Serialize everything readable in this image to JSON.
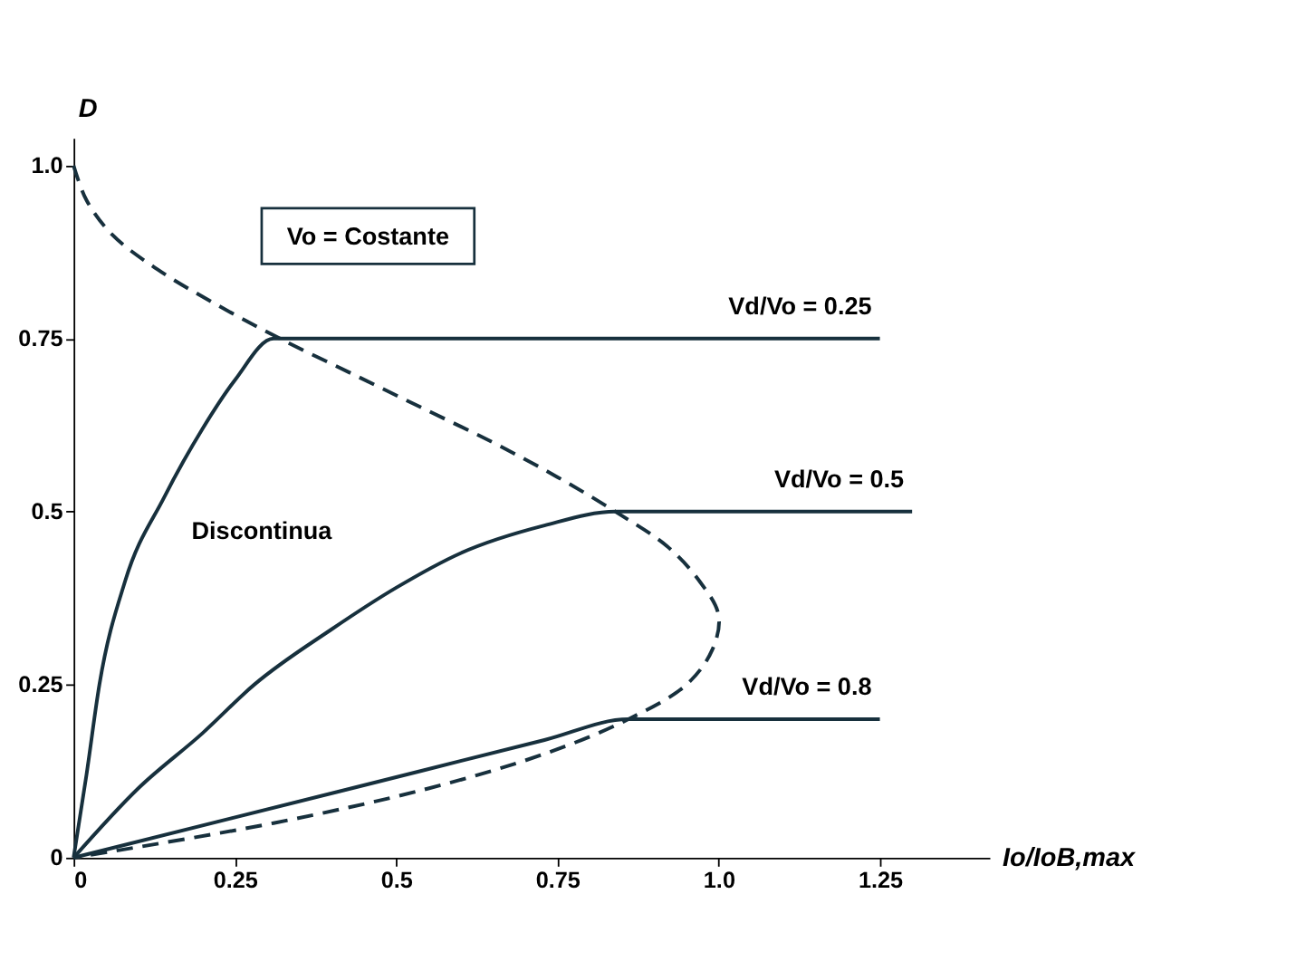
{
  "chart_data": {
    "type": "line",
    "xlabel": "Io/IoB,max",
    "ylabel": "D",
    "annotations": [
      "Vo = Costante",
      "Discontinua"
    ],
    "xlim": [
      0,
      1.42
    ],
    "ylim": [
      0,
      1.04
    ],
    "xticks": [
      0,
      0.25,
      0.5,
      0.75,
      {
        "value": 1,
        "label": "1.0"
      },
      1.25
    ],
    "yticks": [
      0,
      0.25,
      0.5,
      0.75,
      {
        "value": 1,
        "label": "1.0"
      }
    ],
    "grid": false,
    "marker": "none",
    "series": [
      {
        "color": "#17303d",
        "line_style": "dashed",
        "x": [
          0,
          0.02,
          0.06,
          0.13,
          0.22,
          0.32,
          0.43,
          0.54,
          0.65,
          0.75,
          0.84,
          0.92,
          0.97,
          1.0,
          0.99,
          0.95,
          0.86,
          0.73,
          0.55,
          0.31,
          0
        ],
        "values": [
          1,
          0.95,
          0.9,
          0.85,
          0.8,
          0.75,
          0.7,
          0.65,
          0.6,
          0.55,
          0.5,
          0.45,
          0.4,
          0.35,
          0.3,
          0.25,
          0.2,
          0.15,
          0.1,
          0.05,
          0
        ]
      },
      {
        "name": "Vd/Vo = 0.25",
        "color": "#17303d",
        "line_style": "solid",
        "x": [
          0,
          0.02,
          0.04,
          0.08,
          0.14,
          0.2,
          0.25,
          0.31,
          1.25
        ],
        "values": [
          0,
          0.12,
          0.25,
          0.4,
          0.52,
          0.62,
          0.69,
          0.75,
          0.75
        ]
      },
      {
        "name": "Vd/Vo = 0.5",
        "color": "#17303d",
        "line_style": "solid",
        "x": [
          0,
          0.1,
          0.2,
          0.28,
          0.4,
          0.5,
          0.6,
          0.73,
          0.84,
          1.3
        ],
        "values": [
          0,
          0.1,
          0.18,
          0.25,
          0.33,
          0.39,
          0.44,
          0.48,
          0.5,
          0.5
        ]
      },
      {
        "name": "Vd/Vo = 0.8",
        "color": "#17303d",
        "line_style": "solid",
        "x": [
          0,
          0.43,
          0.73,
          0.86,
          1.25
        ],
        "values": [
          0,
          0.1,
          0.17,
          0.2,
          0.2
        ]
      }
    ]
  }
}
